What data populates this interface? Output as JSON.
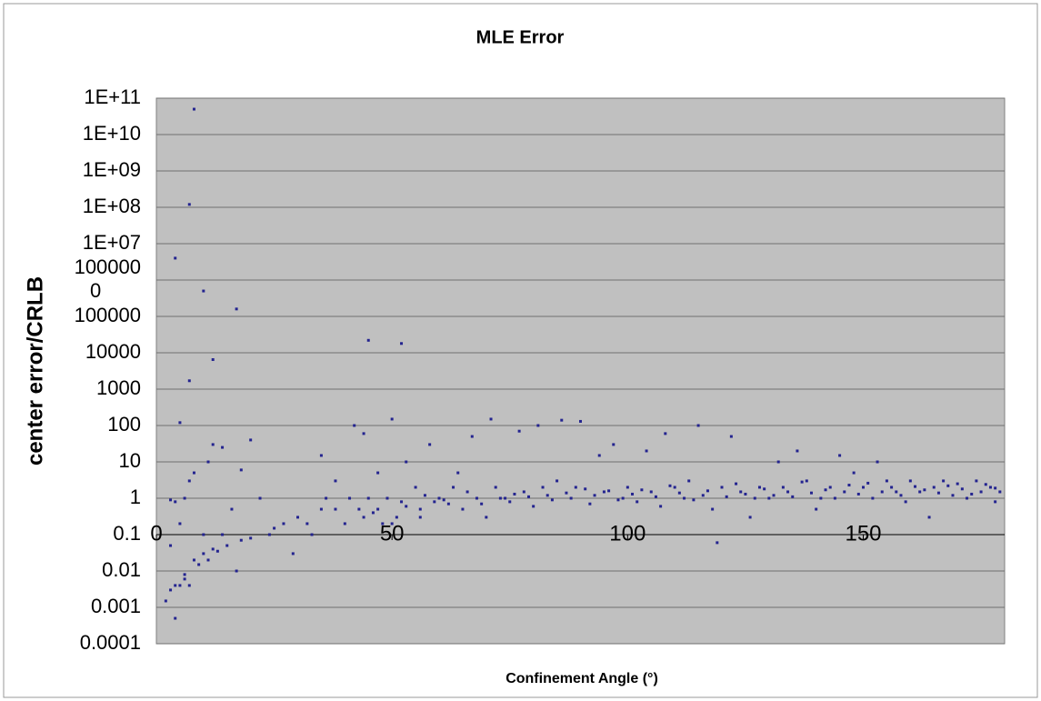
{
  "chart_data": {
    "type": "scatter",
    "title": "MLE Error",
    "x_label": "Confinement Angle (°)",
    "y_label": "center error/CRLB",
    "color": "#23238f",
    "log_y": true,
    "grid": true,
    "x_axis_crosses_y": 0.1,
    "xlim": [
      0,
      180
    ],
    "xticks": [
      0,
      50,
      100,
      150
    ],
    "ylim": [
      0.0001,
      100000000000
    ],
    "yticks": [
      0.0001,
      0.001,
      0.01,
      0.1,
      1,
      10,
      100,
      1000,
      10000,
      100000,
      1000000,
      {
        "value": 10000000,
        "label": "1E+07"
      },
      {
        "value": 100000000,
        "label": "1E+08"
      },
      {
        "value": 1000000000,
        "label": "1E+09"
      },
      {
        "value": 10000000000,
        "label": "1E+10"
      },
      {
        "value": 100000000000,
        "label": "1E+11"
      }
    ],
    "points": [
      [
        8,
        50000000000
      ],
      [
        7,
        120000000
      ],
      [
        4,
        4000000
      ],
      [
        10,
        500000
      ],
      [
        7,
        1700
      ],
      [
        12,
        6500
      ],
      [
        17,
        160000
      ],
      [
        45,
        22000
      ],
      [
        52,
        18000
      ],
      [
        5,
        120
      ],
      [
        2,
        0.0015
      ],
      [
        3,
        0.003
      ],
      [
        4,
        0.004
      ],
      [
        4,
        0.0005
      ],
      [
        5,
        0.004
      ],
      [
        6,
        0.008
      ],
      [
        6,
        0.006
      ],
      [
        7,
        0.004
      ],
      [
        8,
        0.02
      ],
      [
        9,
        0.015
      ],
      [
        10,
        0.03
      ],
      [
        11,
        0.02
      ],
      [
        12,
        0.04
      ],
      [
        13,
        0.035
      ],
      [
        14,
        0.1
      ],
      [
        15,
        0.05
      ],
      [
        17,
        0.01
      ],
      [
        18,
        0.07
      ],
      [
        20,
        0.08
      ],
      [
        3,
        0.05
      ],
      [
        5,
        0.2
      ],
      [
        6,
        1
      ],
      [
        4,
        0.8
      ],
      [
        3,
        0.9
      ],
      [
        7,
        3
      ],
      [
        8,
        5
      ],
      [
        10,
        0.1
      ],
      [
        11,
        10
      ],
      [
        12,
        30
      ],
      [
        14,
        25
      ],
      [
        16,
        0.5
      ],
      [
        18,
        6
      ],
      [
        20,
        40
      ],
      [
        22,
        1
      ],
      [
        24,
        0.1
      ],
      [
        25,
        0.15
      ],
      [
        27,
        0.2
      ],
      [
        29,
        0.03
      ],
      [
        30,
        0.3
      ],
      [
        32,
        0.2
      ],
      [
        33,
        0.1
      ],
      [
        35,
        15
      ],
      [
        36,
        1
      ],
      [
        38,
        0.5
      ],
      [
        40,
        0.2
      ],
      [
        42,
        100
      ],
      [
        43,
        0.5
      ],
      [
        44,
        0.3
      ],
      [
        46,
        0.4
      ],
      [
        48,
        0.2
      ],
      [
        49,
        1
      ],
      [
        50,
        150
      ],
      [
        51,
        0.3
      ],
      [
        53,
        0.6
      ],
      [
        55,
        2
      ],
      [
        56,
        0.5
      ],
      [
        58,
        30
      ],
      [
        60,
        1
      ],
      [
        62,
        0.7
      ],
      [
        64,
        5
      ],
      [
        65,
        0.5
      ],
      [
        67,
        50
      ],
      [
        68,
        1
      ],
      [
        70,
        0.3
      ],
      [
        71,
        150
      ],
      [
        72,
        2
      ],
      [
        74,
        1
      ],
      [
        75,
        0.8
      ],
      [
        77,
        70
      ],
      [
        78,
        1.5
      ],
      [
        80,
        0.6
      ],
      [
        81,
        100
      ],
      [
        83,
        1.2
      ],
      [
        85,
        3
      ],
      [
        86,
        140
      ],
      [
        88,
        1
      ],
      [
        89,
        2
      ],
      [
        90,
        130
      ],
      [
        92,
        0.7
      ],
      [
        94,
        15
      ],
      [
        95,
        1.5
      ],
      [
        97,
        30
      ],
      [
        99,
        1
      ],
      [
        100,
        2
      ],
      [
        102,
        0.8
      ],
      [
        104,
        20
      ],
      [
        105,
        1.5
      ],
      [
        107,
        0.6
      ],
      [
        108,
        60
      ],
      [
        110,
        2
      ],
      [
        112,
        1
      ],
      [
        113,
        3
      ],
      [
        115,
        100
      ],
      [
        116,
        1.2
      ],
      [
        118,
        0.5
      ],
      [
        119,
        0.06
      ],
      [
        120,
        2
      ],
      [
        122,
        50
      ],
      [
        124,
        1.5
      ],
      [
        126,
        0.3
      ],
      [
        128,
        2
      ],
      [
        130,
        1
      ],
      [
        132,
        10
      ],
      [
        134,
        1.5
      ],
      [
        136,
        20
      ],
      [
        138,
        3
      ],
      [
        140,
        0.5
      ],
      [
        141,
        1
      ],
      [
        143,
        2
      ],
      [
        145,
        15
      ],
      [
        146,
        1.5
      ],
      [
        148,
        5
      ],
      [
        150,
        2
      ],
      [
        152,
        1
      ],
      [
        153,
        10
      ],
      [
        155,
        3
      ],
      [
        157,
        1.5
      ],
      [
        159,
        0.8
      ],
      [
        160,
        3
      ],
      [
        162,
        1.5
      ],
      [
        164,
        0.3
      ],
      [
        165,
        2
      ],
      [
        167,
        3
      ],
      [
        169,
        1.2
      ],
      [
        170,
        2.5
      ],
      [
        172,
        1
      ],
      [
        174,
        3
      ],
      [
        175,
        1.5
      ],
      [
        177,
        2
      ],
      [
        178,
        0.8
      ],
      [
        179,
        1.5
      ],
      [
        45,
        1
      ],
      [
        47,
        0.5
      ],
      [
        52,
        0.8
      ],
      [
        57,
        1.2
      ],
      [
        61,
        0.9
      ],
      [
        66,
        1.5
      ],
      [
        69,
        0.7
      ],
      [
        73,
        1
      ],
      [
        76,
        1.3
      ],
      [
        79,
        1.1
      ],
      [
        82,
        2
      ],
      [
        84,
        0.9
      ],
      [
        87,
        1.4
      ],
      [
        91,
        1.8
      ],
      [
        93,
        1.2
      ],
      [
        96,
        1.6
      ],
      [
        98,
        0.9
      ],
      [
        101,
        1.3
      ],
      [
        103,
        1.7
      ],
      [
        106,
        1.1
      ],
      [
        109,
        2.2
      ],
      [
        111,
        1.4
      ],
      [
        114,
        0.9
      ],
      [
        117,
        1.6
      ],
      [
        121,
        1.1
      ],
      [
        123,
        2.5
      ],
      [
        125,
        1.3
      ],
      [
        127,
        1
      ],
      [
        129,
        1.8
      ],
      [
        131,
        1.2
      ],
      [
        133,
        2
      ],
      [
        135,
        1.1
      ],
      [
        137,
        2.8
      ],
      [
        139,
        1.4
      ],
      [
        142,
        1.7
      ],
      [
        144,
        1
      ],
      [
        147,
        2.3
      ],
      [
        149,
        1.3
      ],
      [
        151,
        2.6
      ],
      [
        154,
        1.5
      ],
      [
        156,
        2
      ],
      [
        158,
        1.2
      ],
      [
        161,
        2.1
      ],
      [
        163,
        1.7
      ],
      [
        166,
        1.4
      ],
      [
        168,
        2.2
      ],
      [
        171,
        1.8
      ],
      [
        173,
        1.3
      ],
      [
        176,
        2.4
      ],
      [
        178,
        1.9
      ],
      [
        35,
        0.5
      ],
      [
        38,
        3
      ],
      [
        41,
        1
      ],
      [
        44,
        60
      ],
      [
        47,
        5
      ],
      [
        50,
        0.2
      ],
      [
        53,
        10
      ],
      [
        56,
        0.3
      ],
      [
        59,
        0.8
      ],
      [
        63,
        2
      ]
    ]
  }
}
